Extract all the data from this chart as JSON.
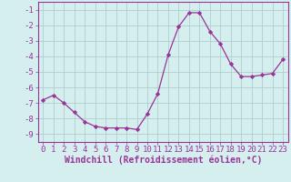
{
  "x": [
    0,
    1,
    2,
    3,
    4,
    5,
    6,
    7,
    8,
    9,
    10,
    11,
    12,
    13,
    14,
    15,
    16,
    17,
    18,
    19,
    20,
    21,
    22,
    23
  ],
  "y": [
    -6.8,
    -6.5,
    -7.0,
    -7.6,
    -8.2,
    -8.5,
    -8.6,
    -8.6,
    -8.6,
    -8.7,
    -7.7,
    -6.4,
    -3.9,
    -2.1,
    -1.2,
    -1.2,
    -2.4,
    -3.2,
    -4.5,
    -5.3,
    -5.3,
    -5.2,
    -5.1,
    -4.2
  ],
  "line_color": "#993399",
  "marker": "D",
  "marker_size": 2.2,
  "bg_color": "#d5efee",
  "grid_color": "#b0cece",
  "xlabel": "Windchill (Refroidissement éolien,°C)",
  "ylim": [
    -9.5,
    -0.5
  ],
  "xlim": [
    -0.5,
    23.5
  ],
  "yticks": [
    -9,
    -8,
    -7,
    -6,
    -5,
    -4,
    -3,
    -2,
    -1
  ],
  "xticks": [
    0,
    1,
    2,
    3,
    4,
    5,
    6,
    7,
    8,
    9,
    10,
    11,
    12,
    13,
    14,
    15,
    16,
    17,
    18,
    19,
    20,
    21,
    22,
    23
  ],
  "tick_label_fontsize": 6.5,
  "xlabel_fontsize": 7.0,
  "axis_color": "#993399",
  "tick_color": "#993399"
}
